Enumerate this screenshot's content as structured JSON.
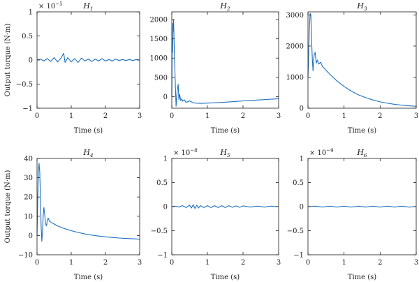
{
  "chart_data": [
    {
      "id": "H1",
      "type": "line",
      "title": {
        "base": "H",
        "sub": "1"
      },
      "xlabel": "Time (s)",
      "ylabel": "Output torque (N·m)",
      "xlim": [
        0,
        3
      ],
      "ylim": [
        -1,
        1
      ],
      "xticks": [
        0,
        1,
        2,
        3
      ],
      "yticks": [
        -1,
        -0.5,
        0,
        0.5,
        1
      ],
      "yticklabels": [
        "−1",
        "−0.5",
        "0",
        "0.5",
        "1"
      ],
      "ymultiplier": {
        "text": "× 10",
        "exp": "−5"
      },
      "series": [
        {
          "color": "#1c6fc0",
          "points": [
            [
              0,
              0.0
            ],
            [
              0.1,
              0.02
            ],
            [
              0.2,
              -0.02
            ],
            [
              0.3,
              0.03
            ],
            [
              0.4,
              -0.03
            ],
            [
              0.5,
              0.05
            ],
            [
              0.6,
              -0.04
            ],
            [
              0.7,
              0.04
            ],
            [
              0.78,
              0.14
            ],
            [
              0.82,
              -0.05
            ],
            [
              0.9,
              0.05
            ],
            [
              1.0,
              -0.04
            ],
            [
              1.1,
              0.03
            ],
            [
              1.2,
              -0.05
            ],
            [
              1.3,
              0.04
            ],
            [
              1.4,
              -0.02
            ],
            [
              1.5,
              0.02
            ],
            [
              1.6,
              -0.03
            ],
            [
              1.7,
              0.02
            ],
            [
              1.8,
              -0.02
            ],
            [
              1.9,
              0.03
            ],
            [
              2.0,
              -0.02
            ],
            [
              2.1,
              0.01
            ],
            [
              2.2,
              -0.02
            ],
            [
              2.3,
              0.02
            ],
            [
              2.4,
              -0.01
            ],
            [
              2.5,
              0.01
            ],
            [
              2.6,
              -0.01
            ],
            [
              2.7,
              0.01
            ],
            [
              2.8,
              -0.01
            ],
            [
              2.9,
              0.01
            ],
            [
              3.0,
              0.0
            ]
          ]
        }
      ]
    },
    {
      "id": "H2",
      "type": "line",
      "title": {
        "base": "H",
        "sub": "2"
      },
      "xlabel": "Time (s)",
      "ylabel": "",
      "xlim": [
        0,
        3
      ],
      "ylim": [
        -300,
        2200
      ],
      "xticks": [
        0,
        1,
        2,
        3
      ],
      "yticks": [
        0,
        500,
        1000,
        1500,
        2000
      ],
      "yticklabels": [
        "0",
        "500",
        "1000",
        "1500",
        "2000"
      ],
      "ymultiplier": null,
      "series": [
        {
          "color": "#1c6fc0",
          "points": [
            [
              0,
              0
            ],
            [
              0.01,
              1500
            ],
            [
              0.02,
              1150
            ],
            [
              0.03,
              1900
            ],
            [
              0.04,
              1700
            ],
            [
              0.05,
              2000
            ],
            [
              0.06,
              1600
            ],
            [
              0.08,
              900
            ],
            [
              0.1,
              300
            ],
            [
              0.12,
              -250
            ],
            [
              0.15,
              150
            ],
            [
              0.18,
              320
            ],
            [
              0.2,
              -80
            ],
            [
              0.22,
              60
            ],
            [
              0.25,
              -100
            ],
            [
              0.28,
              -60
            ],
            [
              0.3,
              -120
            ],
            [
              0.35,
              -80
            ],
            [
              0.4,
              -150
            ],
            [
              0.5,
              -110
            ],
            [
              0.6,
              -160
            ],
            [
              0.7,
              -170
            ],
            [
              0.8,
              -175
            ],
            [
              0.9,
              -172
            ],
            [
              1.0,
              -168
            ],
            [
              1.2,
              -160
            ],
            [
              1.4,
              -150
            ],
            [
              1.6,
              -138
            ],
            [
              1.8,
              -125
            ],
            [
              2.0,
              -112
            ],
            [
              2.2,
              -100
            ],
            [
              2.4,
              -88
            ],
            [
              2.6,
              -76
            ],
            [
              2.8,
              -65
            ],
            [
              3.0,
              -55
            ]
          ]
        }
      ]
    },
    {
      "id": "H3",
      "type": "line",
      "title": {
        "base": "H",
        "sub": "3"
      },
      "xlabel": "Time (s)",
      "ylabel": "",
      "xlim": [
        0,
        3
      ],
      "ylim": [
        0,
        3100
      ],
      "xticks": [
        0,
        1,
        2,
        3
      ],
      "yticks": [
        0,
        1000,
        2000,
        3000
      ],
      "yticklabels": [
        "0",
        "1000",
        "2000",
        "3000"
      ],
      "ymultiplier": null,
      "series": [
        {
          "color": "#1c6fc0",
          "points": [
            [
              0,
              1000
            ],
            [
              0.02,
              1800
            ],
            [
              0.04,
              2600
            ],
            [
              0.06,
              3050
            ],
            [
              0.08,
              3000
            ],
            [
              0.1,
              2200
            ],
            [
              0.12,
              1600
            ],
            [
              0.14,
              1200
            ],
            [
              0.17,
              1700
            ],
            [
              0.2,
              1800
            ],
            [
              0.23,
              1450
            ],
            [
              0.26,
              1550
            ],
            [
              0.3,
              1420
            ],
            [
              0.35,
              1480
            ],
            [
              0.4,
              1350
            ],
            [
              0.5,
              1220
            ],
            [
              0.6,
              1100
            ],
            [
              0.8,
              880
            ],
            [
              1.0,
              700
            ],
            [
              1.2,
              550
            ],
            [
              1.4,
              430
            ],
            [
              1.6,
              340
            ],
            [
              1.8,
              265
            ],
            [
              2.0,
              205
            ],
            [
              2.2,
              160
            ],
            [
              2.4,
              125
            ],
            [
              2.6,
              98
            ],
            [
              2.8,
              78
            ],
            [
              3.0,
              62
            ]
          ]
        }
      ]
    },
    {
      "id": "H4",
      "type": "line",
      "title": {
        "base": "H",
        "sub": "4"
      },
      "xlabel": "Time (s)",
      "ylabel": "Output torque (N·m)",
      "xlim": [
        0,
        3
      ],
      "ylim": [
        -10,
        40
      ],
      "xticks": [
        0,
        1,
        2,
        3
      ],
      "yticks": [
        -10,
        0,
        10,
        20,
        30,
        40
      ],
      "yticklabels": [
        "−10",
        "0",
        "10",
        "20",
        "30",
        "40"
      ],
      "ymultiplier": null,
      "series": [
        {
          "color": "#1c6fc0",
          "points": [
            [
              0,
              0
            ],
            [
              0.02,
              18
            ],
            [
              0.04,
              33
            ],
            [
              0.06,
              37.5
            ],
            [
              0.08,
              33
            ],
            [
              0.1,
              20
            ],
            [
              0.12,
              5
            ],
            [
              0.14,
              -3
            ],
            [
              0.16,
              2
            ],
            [
              0.18,
              10
            ],
            [
              0.2,
              14.5
            ],
            [
              0.22,
              12
            ],
            [
              0.25,
              6
            ],
            [
              0.28,
              5
            ],
            [
              0.3,
              8
            ],
            [
              0.33,
              9
            ],
            [
              0.36,
              7.5
            ],
            [
              0.4,
              7
            ],
            [
              0.5,
              6
            ],
            [
              0.6,
              5
            ],
            [
              0.8,
              3.6
            ],
            [
              1.0,
              2.5
            ],
            [
              1.2,
              1.6
            ],
            [
              1.4,
              0.8
            ],
            [
              1.6,
              0.2
            ],
            [
              1.8,
              -0.3
            ],
            [
              2.0,
              -0.7
            ],
            [
              2.2,
              -1.0
            ],
            [
              2.4,
              -1.3
            ],
            [
              2.6,
              -1.5
            ],
            [
              2.8,
              -1.7
            ],
            [
              3.0,
              -1.9
            ]
          ]
        }
      ]
    },
    {
      "id": "H5",
      "type": "line",
      "title": {
        "base": "H",
        "sub": "5"
      },
      "xlabel": "Time (s)",
      "ylabel": "",
      "xlim": [
        0,
        3
      ],
      "ylim": [
        -1,
        1
      ],
      "xticks": [
        0,
        1,
        2,
        3
      ],
      "yticks": [
        -1,
        -0.5,
        0,
        0.5,
        1
      ],
      "yticklabels": [
        "−1",
        "−0.5",
        "0",
        "0.5",
        "1"
      ],
      "ymultiplier": {
        "text": "× 10",
        "exp": "−8"
      },
      "series": [
        {
          "color": "#1c6fc0",
          "points": [
            [
              0,
              0
            ],
            [
              0.1,
              0.01
            ],
            [
              0.2,
              -0.01
            ],
            [
              0.3,
              0.02
            ],
            [
              0.4,
              -0.02
            ],
            [
              0.5,
              0.03
            ],
            [
              0.55,
              -0.03
            ],
            [
              0.6,
              0.04
            ],
            [
              0.65,
              -0.04
            ],
            [
              0.7,
              0.03
            ],
            [
              0.75,
              -0.03
            ],
            [
              0.8,
              0.02
            ],
            [
              0.9,
              -0.02
            ],
            [
              1.0,
              0.02
            ],
            [
              1.1,
              -0.02
            ],
            [
              1.2,
              0.02
            ],
            [
              1.3,
              -0.02
            ],
            [
              1.4,
              0.02
            ],
            [
              1.5,
              -0.02
            ],
            [
              1.6,
              0.02
            ],
            [
              1.7,
              -0.015
            ],
            [
              1.8,
              0.015
            ],
            [
              1.9,
              -0.015
            ],
            [
              2.0,
              0.015
            ],
            [
              2.2,
              -0.01
            ],
            [
              2.4,
              0.01
            ],
            [
              2.6,
              -0.01
            ],
            [
              2.8,
              0.01
            ],
            [
              3.0,
              0
            ]
          ]
        }
      ]
    },
    {
      "id": "H6",
      "type": "line",
      "title": {
        "base": "H",
        "sub": "6"
      },
      "xlabel": "Time (s)",
      "ylabel": "",
      "xlim": [
        0,
        3
      ],
      "ylim": [
        -1,
        1
      ],
      "xticks": [
        0,
        1,
        2,
        3
      ],
      "yticks": [
        -1,
        -0.5,
        0,
        0.5,
        1
      ],
      "yticklabels": [
        "−1",
        "−0.5",
        "0",
        "0.5",
        "1"
      ],
      "ymultiplier": {
        "text": "× 10",
        "exp": "−9"
      },
      "series": [
        {
          "color": "#1c6fc0",
          "points": [
            [
              0,
              0
            ],
            [
              0.2,
              0.01
            ],
            [
              0.4,
              -0.01
            ],
            [
              0.6,
              0.01
            ],
            [
              0.8,
              -0.01
            ],
            [
              1.0,
              0.01
            ],
            [
              1.2,
              -0.01
            ],
            [
              1.4,
              0.01
            ],
            [
              1.6,
              -0.01
            ],
            [
              1.8,
              0.01
            ],
            [
              2.0,
              -0.01
            ],
            [
              2.2,
              0.01
            ],
            [
              2.4,
              -0.01
            ],
            [
              2.6,
              0.01
            ],
            [
              2.8,
              -0.01
            ],
            [
              3.0,
              0
            ]
          ]
        }
      ]
    }
  ]
}
